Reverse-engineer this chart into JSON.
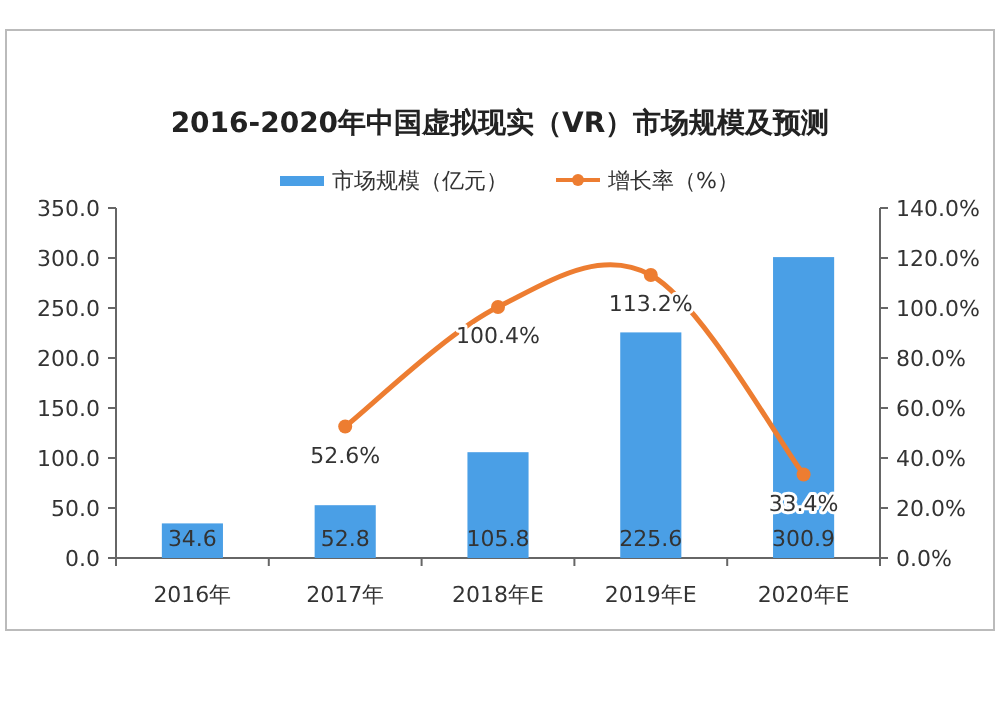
{
  "chart_data": {
    "type": "bar",
    "title": "2016-2020年中国虚拟现实（VR）市场规模及预测",
    "categories": [
      "2016年",
      "2017年",
      "2018年E",
      "2019年E",
      "2020年E"
    ],
    "series": [
      {
        "name": "市场规模（亿元）",
        "color": "#4a9fe6",
        "values": [
          34.6,
          52.8,
          105.8,
          225.6,
          300.9
        ],
        "value_labels": [
          "34.6",
          "52.8",
          "105.8",
          "225.6",
          "300.9"
        ]
      },
      {
        "name": "增长率（%）",
        "type": "line",
        "axis": "y2",
        "color": "#ed7d31",
        "marker": "circle",
        "line_style": "solid",
        "values": [
          null,
          52.6,
          100.4,
          113.2,
          33.4
        ],
        "value_labels": [
          null,
          "52.6%",
          "100.4%",
          "113.2%",
          "33.4%"
        ]
      }
    ],
    "ylim": [
      0,
      350
    ],
    "yticks": [
      {
        "value": 0,
        "label": "0.0"
      },
      {
        "value": 50,
        "label": "50.0"
      },
      {
        "value": 100,
        "label": "100.0"
      },
      {
        "value": 150,
        "label": "150.0"
      },
      {
        "value": 200,
        "label": "200.0"
      },
      {
        "value": 250,
        "label": "250.0"
      },
      {
        "value": 300,
        "label": "300.0"
      },
      {
        "value": 350,
        "label": "350.0"
      }
    ],
    "y2lim": [
      0,
      140
    ],
    "y2ticks": [
      {
        "value": 0,
        "label": "0.0%"
      },
      {
        "value": 20,
        "label": "20.0%"
      },
      {
        "value": 40,
        "label": "40.0%"
      },
      {
        "value": 60,
        "label": "60.0%"
      },
      {
        "value": 80,
        "label": "80.0%"
      },
      {
        "value": 100,
        "label": "100.0%"
      },
      {
        "value": 120,
        "label": "120.0%"
      },
      {
        "value": 140,
        "label": "140.0%"
      }
    ],
    "legend": "top",
    "grid": false
  }
}
